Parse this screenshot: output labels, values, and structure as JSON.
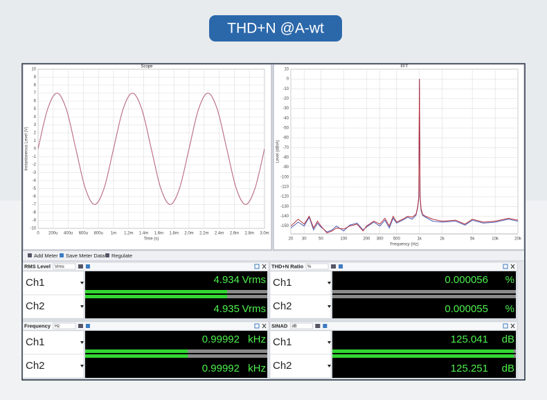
{
  "header": {
    "title": "THD+N @A-wt"
  },
  "chart_data": [
    {
      "type": "line",
      "title": "Scope",
      "x_label": "Time (s)",
      "y_label": "Instantaneous Level (V)",
      "x": [
        0,
        0.000125,
        0.00025,
        0.000375,
        0.0005,
        0.000625,
        0.00075,
        0.000875,
        0.001,
        0.001125,
        0.00125,
        0.001375,
        0.0015,
        0.001625,
        0.00175,
        0.001875,
        0.002,
        0.002125,
        0.00225,
        0.002375,
        0.0025,
        0.002625,
        0.00275,
        0.002875,
        0.003
      ],
      "series": [
        {
          "color": "#5b7fc0",
          "values": [
            0,
            4.95,
            7,
            4.95,
            0,
            -4.95,
            -7,
            -4.95,
            0,
            4.95,
            7,
            4.95,
            0,
            -4.95,
            -7,
            -4.95,
            0,
            4.95,
            7,
            4.95,
            0,
            -4.95,
            -7,
            -4.95,
            0
          ]
        },
        {
          "color": "#c9707c",
          "values": [
            0,
            4.95,
            7,
            4.95,
            0,
            -4.95,
            -7,
            -4.95,
            0,
            4.95,
            7,
            4.95,
            0,
            -4.95,
            -7,
            -4.95,
            0,
            4.95,
            7,
            4.95,
            0,
            -4.95,
            -7,
            -4.95,
            0
          ]
        }
      ],
      "xlim": [
        0,
        0.003
      ],
      "xticks": [
        0,
        {
          "value": 0.0002,
          "label": "200u"
        },
        {
          "value": 0.0004,
          "label": "400u"
        },
        {
          "value": 0.0006,
          "label": "600u"
        },
        {
          "value": 0.0008,
          "label": "800u"
        },
        {
          "value": 0.001,
          "label": "1m"
        },
        {
          "value": 0.0012,
          "label": "1.2m"
        },
        {
          "value": 0.0014,
          "label": "1.4m"
        },
        {
          "value": 0.0016,
          "label": "1.6m"
        },
        {
          "value": 0.0018,
          "label": "1.8m"
        },
        {
          "value": 0.002,
          "label": "2.0m"
        },
        {
          "value": 0.0022,
          "label": "2.2m"
        },
        {
          "value": 0.0024,
          "label": "2.4m"
        },
        {
          "value": 0.0026,
          "label": "2.6m"
        },
        {
          "value": 0.0028,
          "label": "2.8m"
        },
        {
          "value": 0.003,
          "label": "3.0m"
        }
      ],
      "ylim": [
        -10,
        10
      ],
      "yticks": [
        10,
        9,
        8,
        7,
        6,
        5,
        4,
        3,
        2,
        1,
        0,
        -1,
        -2,
        -3,
        -4,
        -5,
        -6,
        -7,
        -8,
        -9,
        -10
      ],
      "grid": true,
      "log_x": false
    },
    {
      "type": "line",
      "title": "FFT",
      "x_label": "Frequency (Hz)",
      "y_label": "Level (dBrA)",
      "x": [
        20,
        25,
        30,
        35,
        40,
        45,
        50,
        60,
        70,
        80,
        100,
        120,
        150,
        180,
        200,
        250,
        300,
        350,
        400,
        450,
        500,
        600,
        700,
        800,
        900,
        950,
        980,
        1000,
        1020,
        1050,
        1100,
        1200,
        1500,
        2000,
        3000,
        4000,
        5000,
        7000,
        10000,
        15000,
        20000
      ],
      "series": [
        {
          "color": "#4a5fb5",
          "values": [
            -152,
            -146,
            -150,
            -141,
            -154,
            -147,
            -151,
            -156,
            -154,
            -150,
            -155,
            -149,
            -147,
            -154,
            -151,
            -146,
            -150,
            -144,
            -152,
            -142,
            -147,
            -144,
            -141,
            -143,
            -139,
            -131,
            -122,
            0,
            -120,
            -134,
            -139,
            -141,
            -145,
            -146,
            -145,
            -149,
            -144,
            -147,
            -146,
            -143,
            -145
          ]
        },
        {
          "color": "#b8303d",
          "values": [
            -150,
            -143,
            -148,
            -140,
            -152,
            -145,
            -150,
            -157,
            -155,
            -152,
            -153,
            -150,
            -148,
            -155,
            -150,
            -145,
            -148,
            -142,
            -150,
            -140,
            -146,
            -143,
            -140,
            -141,
            -138,
            -130,
            -120,
            0,
            -118,
            -132,
            -138,
            -140,
            -143,
            -145,
            -144,
            -148,
            -143,
            -146,
            -145,
            -142,
            -144
          ]
        }
      ],
      "xlim": [
        20,
        20000
      ],
      "xticks": [
        20,
        30,
        50,
        100,
        200,
        300,
        500,
        {
          "value": 1000,
          "label": "1k"
        },
        {
          "value": 2000,
          "label": "2k"
        },
        {
          "value": 5000,
          "label": "5k"
        },
        {
          "value": 10000,
          "label": "10k"
        },
        {
          "value": 20000,
          "label": "20k"
        }
      ],
      "ylim": [
        -158,
        10
      ],
      "yticks": [
        10,
        0,
        -10,
        -20,
        -30,
        -40,
        -50,
        -60,
        -70,
        -80,
        -90,
        -100,
        -110,
        -120,
        -130,
        -140,
        -150
      ],
      "grid": true,
      "log_x": true
    }
  ],
  "toolbar": {
    "buttons": [
      "Add Meter",
      "Save Meter Data",
      "Regulate"
    ]
  },
  "meters": [
    {
      "title": "RMS Level",
      "unit_select": "Vrms",
      "rows": [
        {
          "channel": "Ch1",
          "value": "4.934",
          "unit": "Vrms"
        },
        {
          "channel": "Ch2",
          "value": "4.935",
          "unit": "Vrms"
        }
      ]
    },
    {
      "title": "THD+N Ratio",
      "unit_select": "%",
      "rows": [
        {
          "channel": "Ch1",
          "value": "0.000056",
          "unit": "%"
        },
        {
          "channel": "Ch2",
          "value": "0.000055",
          "unit": "%"
        }
      ]
    },
    {
      "title": "Frequency",
      "unit_select": "Hz",
      "rows": [
        {
          "channel": "Ch1",
          "value": "0.99992",
          "unit": "kHz"
        },
        {
          "channel": "Ch2",
          "value": "0.99992",
          "unit": "kHz"
        }
      ]
    },
    {
      "title": "SINAD",
      "unit_select": "dB",
      "rows": [
        {
          "channel": "Ch1",
          "value": "125.041",
          "unit": "dB"
        },
        {
          "channel": "Ch2",
          "value": "125.251",
          "unit": "dB"
        }
      ]
    }
  ]
}
